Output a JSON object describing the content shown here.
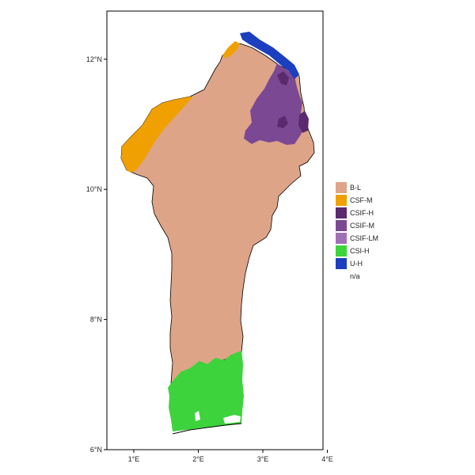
{
  "map": {
    "y_axis": {
      "ticks": [
        {
          "label": "12°N",
          "lat": 12
        },
        {
          "label": "10°N",
          "lat": 10
        },
        {
          "label": "8°N",
          "lat": 8
        },
        {
          "label": "6°N",
          "lat": 6
        }
      ]
    },
    "x_axis": {
      "ticks": [
        {
          "label": "1°E",
          "lon": 1
        },
        {
          "label": "2°E",
          "lon": 2
        },
        {
          "label": "3°E",
          "lon": 3
        },
        {
          "label": "4°E",
          "lon": 4
        }
      ]
    },
    "legend": {
      "position": "right",
      "items": [
        {
          "label": "B-L",
          "color": "#dea488"
        },
        {
          "label": "CSF-M",
          "color": "#f0a000"
        },
        {
          "label": "CSIF-H",
          "color": "#5b2a6e"
        },
        {
          "label": "CSIF-M",
          "color": "#7b4894"
        },
        {
          "label": "CSIF-LM",
          "color": "#a070b4"
        },
        {
          "label": "CSI-H",
          "color": "#3cd33c"
        },
        {
          "label": "U-H",
          "color": "#1c3fbf"
        },
        {
          "label": "n/a",
          "color": "#ffffff"
        }
      ]
    },
    "region_colors": {
      "B-L": "#dea488",
      "CSF-M": "#f0a000",
      "CSIF-H": "#5b2a6e",
      "CSIF-M": "#7b4894",
      "CSI-H": "#3cd33c",
      "U-H": "#1c3fbf"
    }
  }
}
